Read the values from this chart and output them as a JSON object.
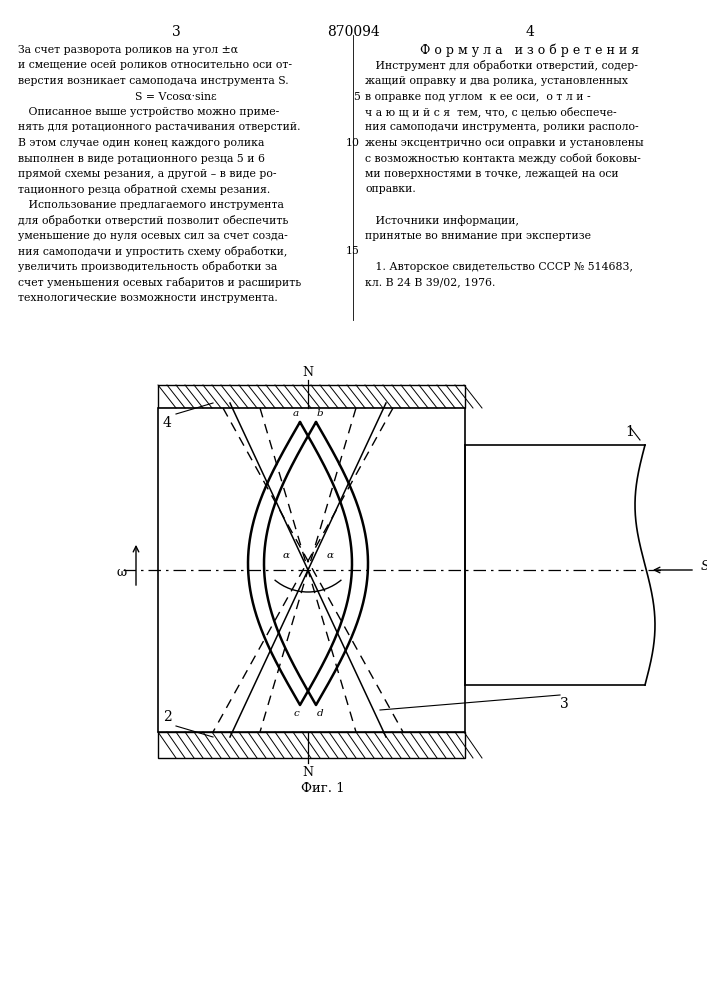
{
  "bg_color": "#ffffff",
  "line_color": "#000000",
  "page_left": "3",
  "page_center": "870094",
  "page_right": "4",
  "fig_caption": "Фиг. 1",
  "left_lines": [
    "За счет разворота роликов на угол ±α",
    "и смещение осей роликов относительно оси от-",
    "верстия возникает самоподача инструмента S.",
    "S = Vcosα·sinε",
    "   Описанное выше устройство можно приме-",
    "нять для ротационного растачивания отверстий.",
    "В этом случае один конец каждого ролика",
    "выполнен в виде ротационного резца 5 и 6",
    "прямой схемы резания, а другой – в виде ро-",
    "тационного резца обратной схемы резания.",
    "   Использование предлагаемого инструмента",
    "для обработки отверстий позволит обеспечить",
    "уменьшение до нуля осевых сил за счет созда-",
    "ния самоподачи и упростить схему обработки,",
    "увеличить производительность обработки за",
    "счет уменьшения осевых габаритов и расширить",
    "технологические возможности инструмента."
  ],
  "right_title": "Ф о р м у л а   и з о б р е т е н и я",
  "right_lines": [
    "   Инструмент для обработки отверстий, содер-",
    "жащий оправку и два ролика, установленных",
    "в оправке под углом  к ее оси,  о т л и -",
    "ч а ю щ и й с я  тем, что, с целью обеспече-",
    "ния самоподачи инструмента, ролики располо-",
    "жены эксцентрично оси оправки и установлены",
    "с возможностью контакта между собой боковы-",
    "ми поверхностями в точке, лежащей на оси",
    "оправки.",
    "",
    "   Источники информации,",
    "принятые во внимание при экспертизе",
    "",
    "   1. Авторское свидетельство СССР № 514683,",
    "кл. В 24 В 39/02, 1976."
  ],
  "line_nums": {
    "2": "5",
    "5": "10",
    "11": "15"
  }
}
